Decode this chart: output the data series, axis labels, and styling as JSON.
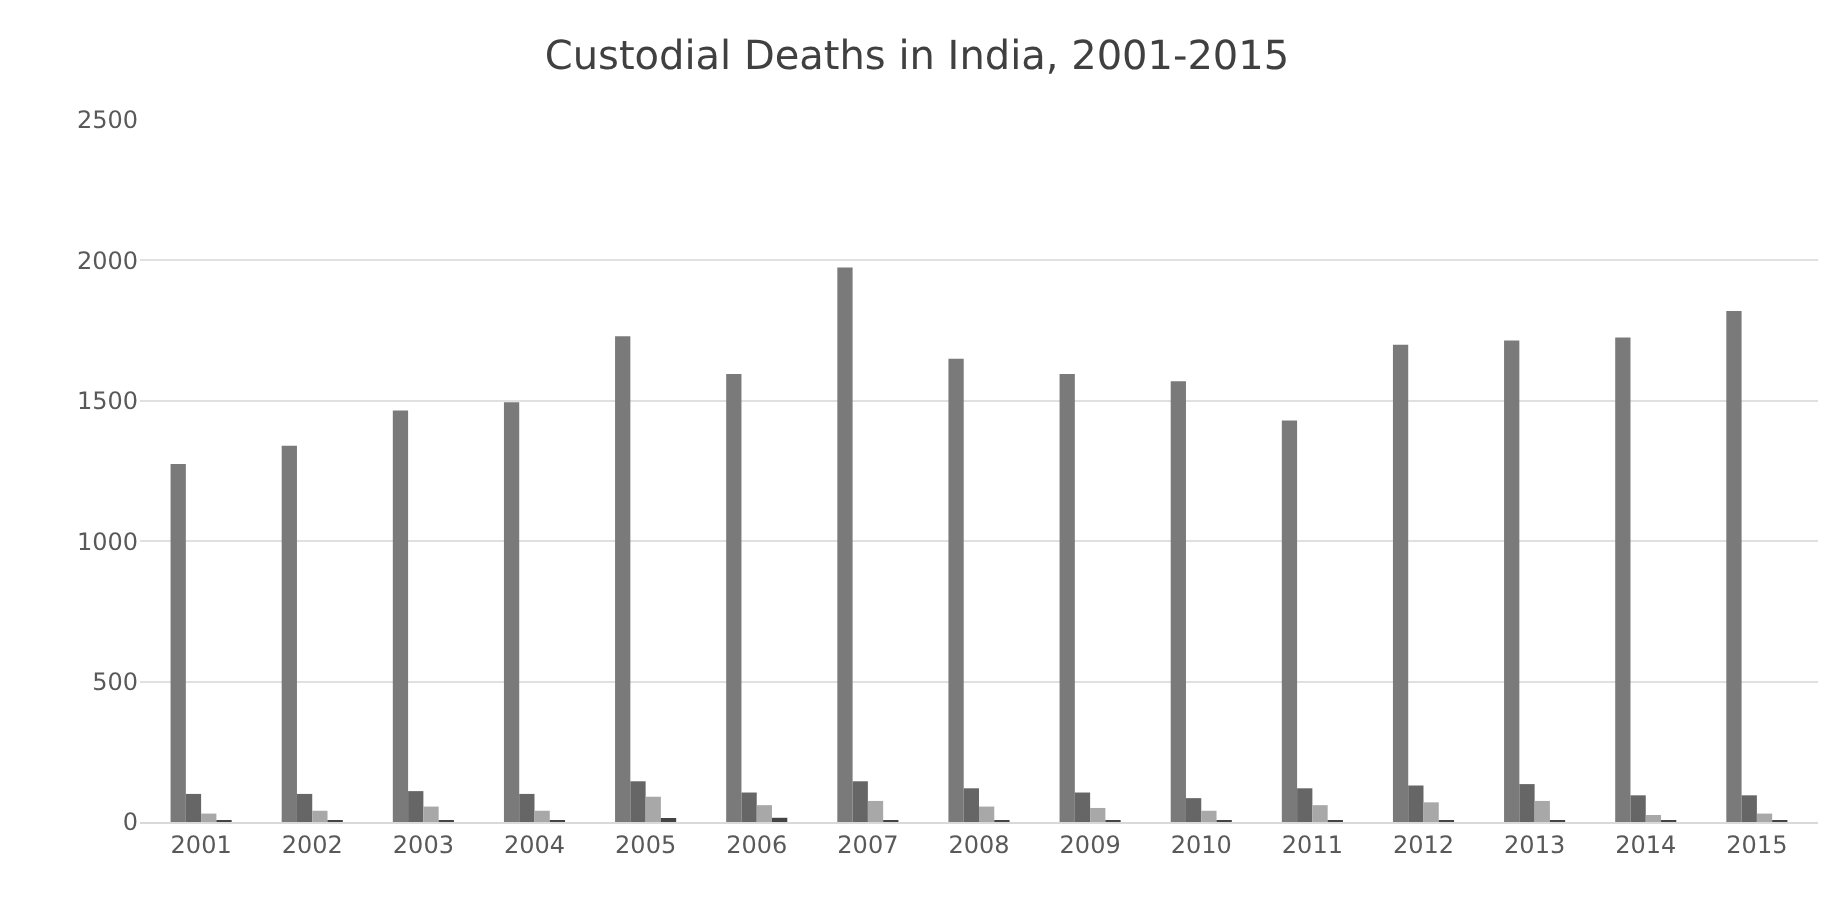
{
  "chart_data": {
    "type": "bar",
    "title": "Custodial Deaths in India, 2001-2015",
    "categories": [
      "2001",
      "2002",
      "2003",
      "2004",
      "2005",
      "2006",
      "2007",
      "2008",
      "2009",
      "2010",
      "2011",
      "2012",
      "2013",
      "2014",
      "2015"
    ],
    "series": [
      {
        "color": "#7a7a7a",
        "values": [
          1275,
          1340,
          1465,
          1495,
          1730,
          1595,
          1975,
          1650,
          1595,
          1570,
          1430,
          1700,
          1715,
          1725,
          1820
        ]
      },
      {
        "color": "#666666",
        "values": [
          100,
          100,
          110,
          100,
          145,
          105,
          145,
          120,
          105,
          85,
          120,
          130,
          135,
          95,
          95
        ]
      },
      {
        "color": "#a8a8a8",
        "values": [
          30,
          40,
          55,
          40,
          90,
          60,
          75,
          55,
          50,
          40,
          60,
          70,
          75,
          25,
          30
        ]
      },
      {
        "color": "#444444",
        "values": [
          3,
          2,
          2,
          5,
          10,
          15,
          2,
          2,
          5,
          5,
          2,
          2,
          2,
          2,
          2
        ]
      }
    ],
    "ylim": [
      0,
      2500
    ],
    "yticks": [
      0,
      500,
      1000,
      1500,
      2000,
      2500
    ],
    "grid": "y"
  }
}
